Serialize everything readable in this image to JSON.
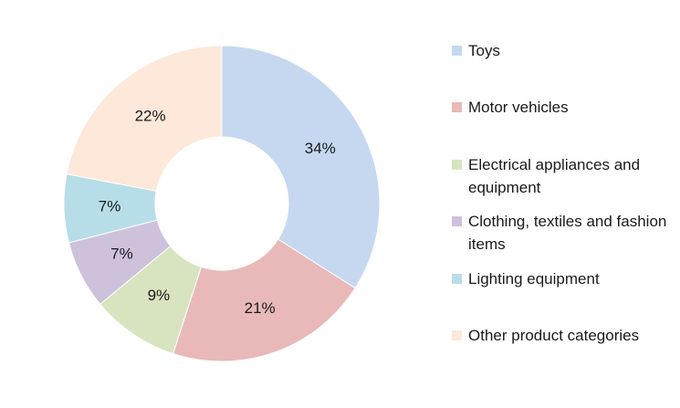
{
  "chart_data": {
    "type": "pie",
    "donut": true,
    "categories": [
      "Toys",
      "Motor vehicles",
      "Electrical appliances and equipment",
      "Clothing, textiles and fashion items",
      "Lighting equipment",
      "Other product categories"
    ],
    "values": [
      34,
      21,
      9,
      7,
      7,
      22
    ],
    "labels": [
      "34%",
      "21%",
      "9%",
      "7%",
      "7%",
      "22%"
    ],
    "colors": [
      "#c5d8f0",
      "#e8b9b8",
      "#d8e4bf",
      "#cdc1dc",
      "#b7dee8",
      "#fde8d9"
    ],
    "legend_position": "right"
  }
}
